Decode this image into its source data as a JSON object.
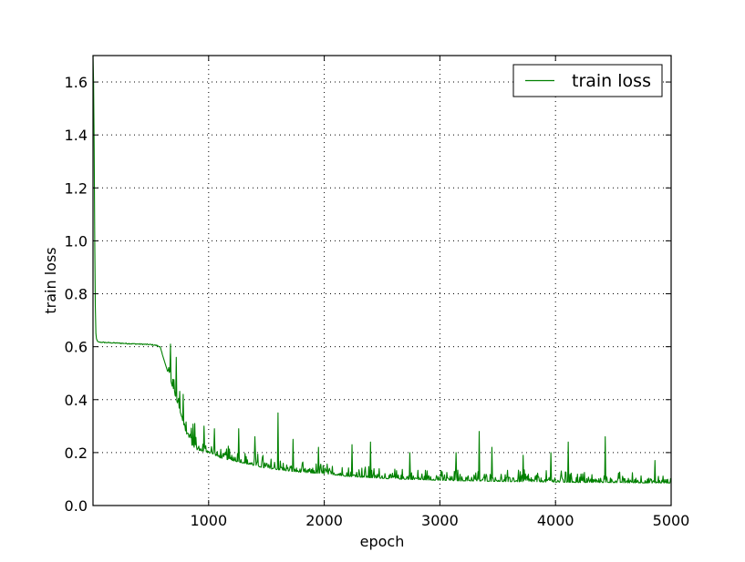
{
  "chart_data": {
    "type": "line",
    "xlabel": "epoch",
    "ylabel": "train loss",
    "xlim": [
      0,
      5000
    ],
    "ylim": [
      0.0,
      1.7
    ],
    "xticks": [
      1000,
      2000,
      3000,
      4000,
      5000
    ],
    "xtick_labels": [
      "1000",
      "2000",
      "3000",
      "4000",
      "5000"
    ],
    "yticks": [
      0.0,
      0.2,
      0.4,
      0.6,
      0.8,
      1.0,
      1.2,
      1.4,
      1.6
    ],
    "ytick_labels": [
      "0.0",
      "0.2",
      "0.4",
      "0.6",
      "0.8",
      "1.0",
      "1.2",
      "1.4",
      "1.6"
    ],
    "grid": true,
    "legend_position": "top-right",
    "series": [
      {
        "name": "train loss",
        "color": "#008000",
        "x": [
          0,
          5,
          10,
          15,
          20,
          25,
          30,
          40,
          50,
          70,
          100,
          200,
          300,
          400,
          500,
          550,
          580,
          600,
          650,
          700,
          750,
          800,
          850,
          900,
          1000,
          1100,
          1200,
          1300,
          1400,
          1500,
          1600,
          1700,
          1800,
          2000,
          2200,
          2400,
          2600,
          2800,
          3000,
          3200,
          3400,
          3600,
          3800,
          4000,
          4200,
          4400,
          4600,
          4800,
          5000
        ],
        "values": [
          1.7,
          1.6,
          1.35,
          1.0,
          0.75,
          0.65,
          0.63,
          0.62,
          0.618,
          0.617,
          0.616,
          0.614,
          0.612,
          0.61,
          0.608,
          0.605,
          0.6,
          0.57,
          0.5,
          0.43,
          0.36,
          0.28,
          0.23,
          0.21,
          0.2,
          0.18,
          0.17,
          0.16,
          0.15,
          0.14,
          0.135,
          0.13,
          0.125,
          0.12,
          0.11,
          0.105,
          0.1,
          0.098,
          0.095,
          0.093,
          0.092,
          0.09,
          0.09,
          0.088,
          0.087,
          0.087,
          0.086,
          0.085,
          0.085
        ],
        "spikes": [
          {
            "x": 670,
            "y": 0.61
          },
          {
            "x": 720,
            "y": 0.56
          },
          {
            "x": 780,
            "y": 0.42
          },
          {
            "x": 880,
            "y": 0.31
          },
          {
            "x": 960,
            "y": 0.3
          },
          {
            "x": 1050,
            "y": 0.29
          },
          {
            "x": 1260,
            "y": 0.29
          },
          {
            "x": 1400,
            "y": 0.26
          },
          {
            "x": 1600,
            "y": 0.35
          },
          {
            "x": 1730,
            "y": 0.25
          },
          {
            "x": 1950,
            "y": 0.22
          },
          {
            "x": 2240,
            "y": 0.23
          },
          {
            "x": 2400,
            "y": 0.24
          },
          {
            "x": 2740,
            "y": 0.2
          },
          {
            "x": 3140,
            "y": 0.2
          },
          {
            "x": 3340,
            "y": 0.28
          },
          {
            "x": 3450,
            "y": 0.22
          },
          {
            "x": 3720,
            "y": 0.19
          },
          {
            "x": 3960,
            "y": 0.2
          },
          {
            "x": 4110,
            "y": 0.24
          },
          {
            "x": 4430,
            "y": 0.26
          },
          {
            "x": 4860,
            "y": 0.17
          }
        ]
      }
    ]
  }
}
